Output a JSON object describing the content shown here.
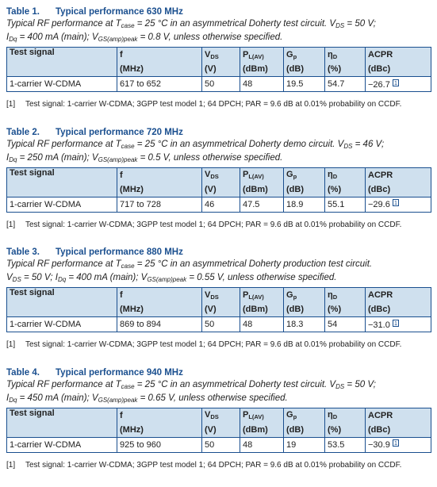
{
  "colors": {
    "accent": "#1a4f8f",
    "header_fill": "#cfe0ee"
  },
  "tables": [
    {
      "number": "Table 1.",
      "title": "Typical performance 630 MHz",
      "caption_line1": "Typical RF performance at T",
      "caption_line1_sub": "case",
      "caption_line1_rest": " = 25 °C in an asymmetrical Doherty test circuit. V",
      "caption_line1_sub2": "DS",
      "caption_line1_end": " = 50 V;",
      "caption_line2": "I",
      "caption_line2_sub": "Dq",
      "caption_line2_rest": " = 400 mA (main); V",
      "caption_line2_sub2": "GS(amp)peak",
      "caption_line2_end": " = 0.8 V, unless otherwise specified.",
      "row": {
        "signal": "1-carrier W-CDMA",
        "f": "617 to 652",
        "vds": "50",
        "pl": "48",
        "gp": "19.5",
        "nd": "54.7",
        "acpr": "−26.7"
      },
      "note": "Test signal: 1-carrier W-CDMA; 3GPP test model 1; 64 DPCH; PAR = 9.6 dB at 0.01% probability on CCDF."
    },
    {
      "number": "Table 2.",
      "title": "Typical performance 720 MHz",
      "caption_line1": "Typical RF performance at T",
      "caption_line1_sub": "case",
      "caption_line1_rest": " = 25 °C in an asymmetrical Doherty demo circuit. V",
      "caption_line1_sub2": "DS",
      "caption_line1_end": " = 46 V;",
      "caption_line2": "I",
      "caption_line2_sub": "Dq",
      "caption_line2_rest": " = 250 mA (main); V",
      "caption_line2_sub2": "GS(amp)peak",
      "caption_line2_end": " = 0.5 V, unless otherwise specified.",
      "row": {
        "signal": "1-carrier W-CDMA",
        "f": "717 to 728",
        "vds": "46",
        "pl": "47.5",
        "gp": "18.9",
        "nd": "55.1",
        "acpr": "−29.6"
      },
      "note": "Test signal: 1-carrier W-CDMA; 3GPP test model 1; 64 DPCH; PAR = 9.6 dB at 0.01% probability on CCDF."
    },
    {
      "number": "Table 3.",
      "title": "Typical performance 880 MHz",
      "caption_line1": "Typical RF performance at T",
      "caption_line1_sub": "case",
      "caption_line1_rest": " = 25 °C in an asymmetrical Doherty production test circuit.",
      "caption_line1_sub2": "",
      "caption_line1_end": "",
      "caption_line2": "V",
      "caption_line2_sub": "DS",
      "caption_line2_rest": " = 50 V; I",
      "caption_line2_sub2": "Dq",
      "caption_line2_end": " = 400 mA (main); V",
      "caption_line2_sub3": "GS(amp)peak",
      "caption_line2_end2": " = 0.55 V, unless otherwise specified.",
      "row": {
        "signal": "1-carrier W-CDMA",
        "f": "869 to 894",
        "vds": "50",
        "pl": "48",
        "gp": "18.3",
        "nd": "54",
        "acpr": "−31.0"
      },
      "note": "Test signal: 1-carrier W-CDMA; 3GPP test model 1; 64 DPCH; PAR = 9.6 dB at 0.01% probability on CCDF."
    },
    {
      "number": "Table 4.",
      "title": "Typical performance 940 MHz",
      "caption_line1": "Typical RF performance at T",
      "caption_line1_sub": "case",
      "caption_line1_rest": " = 25 °C in an asymmetrical Doherty test circuit. V",
      "caption_line1_sub2": "DS",
      "caption_line1_end": " = 50 V;",
      "caption_line2": "I",
      "caption_line2_sub": "Dq",
      "caption_line2_rest": " = 450 mA (main); V",
      "caption_line2_sub2": "GS(amp)peak",
      "caption_line2_end": " = 0.65 V, unless otherwise specified.",
      "row": {
        "signal": "1-carrier W-CDMA",
        "f": "925 to 960",
        "vds": "50",
        "pl": "48",
        "gp": "19",
        "nd": "53.5",
        "acpr": "−30.9"
      },
      "note": "Test signal: 1-carrier W-CDMA; 3GPP test model 1; 64 DPCH; PAR = 9.6 dB at 0.01% probability on CCDF."
    }
  ],
  "headers": {
    "signal": "Test signal",
    "f": "f",
    "f_unit": "(MHz)",
    "vds": "V",
    "vds_sub": "DS",
    "vds_unit": "(V)",
    "pl": "P",
    "pl_sub": "L(AV)",
    "pl_unit": "(dBm)",
    "gp": "G",
    "gp_sub": "p",
    "gp_unit": "(dB)",
    "nd": "η",
    "nd_sub": "D",
    "nd_unit": "(%)",
    "acpr": "ACPR",
    "acpr_unit": "(dBc)"
  },
  "footnote_ref": "1",
  "footnote_marker": "[1]"
}
